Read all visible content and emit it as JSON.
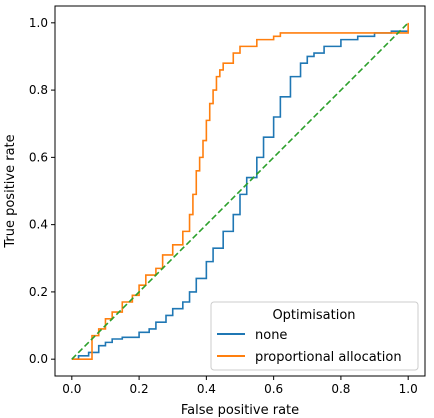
{
  "chart_data": {
    "type": "line",
    "title": "",
    "xlabel": "False positive rate",
    "ylabel": "True positive rate",
    "xlim": [
      -0.05,
      1.05
    ],
    "ylim": [
      -0.05,
      1.05
    ],
    "xticks": [
      0.0,
      0.2,
      0.4,
      0.6,
      0.8,
      1.0
    ],
    "yticks": [
      0.0,
      0.2,
      0.4,
      0.6,
      0.8,
      1.0
    ],
    "xtick_labels": [
      "0.0",
      "0.2",
      "0.4",
      "0.6",
      "0.8",
      "1.0"
    ],
    "ytick_labels": [
      "0.0",
      "0.2",
      "0.4",
      "0.6",
      "0.8",
      "1.0"
    ],
    "grid": false,
    "legend": {
      "title": "Optimisation",
      "placement": "lower-right"
    },
    "series": [
      {
        "name": "none",
        "color": "#1f77b4",
        "step": true,
        "x": [
          0.0,
          0.02,
          0.05,
          0.08,
          0.1,
          0.12,
          0.15,
          0.2,
          0.23,
          0.25,
          0.28,
          0.3,
          0.33,
          0.35,
          0.37,
          0.4,
          0.42,
          0.45,
          0.48,
          0.5,
          0.52,
          0.55,
          0.57,
          0.6,
          0.62,
          0.65,
          0.68,
          0.7,
          0.72,
          0.75,
          0.8,
          0.85,
          0.9,
          0.95,
          1.0
        ],
        "y": [
          0.0,
          0.01,
          0.02,
          0.04,
          0.05,
          0.06,
          0.065,
          0.08,
          0.09,
          0.11,
          0.13,
          0.15,
          0.17,
          0.2,
          0.24,
          0.29,
          0.33,
          0.38,
          0.43,
          0.49,
          0.54,
          0.6,
          0.66,
          0.72,
          0.78,
          0.84,
          0.88,
          0.9,
          0.91,
          0.93,
          0.95,
          0.96,
          0.97,
          0.975,
          0.98
        ]
      },
      {
        "name": "proportional allocation",
        "color": "#ff7f0e",
        "step": true,
        "x": [
          0.0,
          0.06,
          0.08,
          0.1,
          0.12,
          0.15,
          0.18,
          0.2,
          0.22,
          0.25,
          0.27,
          0.3,
          0.33,
          0.35,
          0.36,
          0.37,
          0.38,
          0.39,
          0.4,
          0.41,
          0.42,
          0.43,
          0.44,
          0.45,
          0.48,
          0.5,
          0.55,
          0.6,
          0.62,
          0.7,
          0.8,
          0.9,
          1.0
        ],
        "y": [
          0.0,
          0.07,
          0.09,
          0.12,
          0.14,
          0.17,
          0.19,
          0.22,
          0.25,
          0.27,
          0.31,
          0.34,
          0.38,
          0.43,
          0.49,
          0.56,
          0.6,
          0.65,
          0.71,
          0.76,
          0.8,
          0.84,
          0.86,
          0.88,
          0.91,
          0.93,
          0.95,
          0.96,
          0.97,
          0.97,
          0.97,
          0.97,
          1.0
        ]
      },
      {
        "name": "",
        "color": "#2ca02c",
        "dashed": true,
        "x": [
          0.0,
          1.0
        ],
        "y": [
          0.0,
          1.0
        ]
      }
    ]
  }
}
